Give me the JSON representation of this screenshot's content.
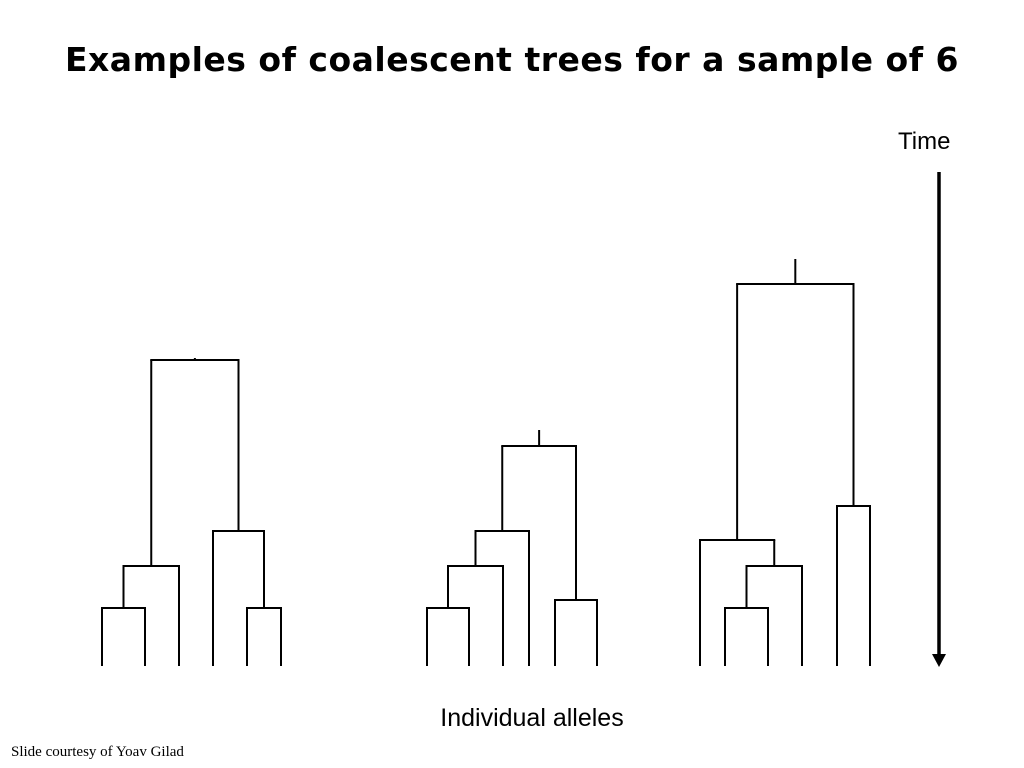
{
  "title": "Examples of coalescent trees for a sample of 6",
  "time_axis_label": "Time",
  "x_axis_label": "Individual alleles",
  "credit": "Slide courtesy of Yoav Gilad",
  "trees": [
    {
      "name": "tree-1",
      "root_time": 308,
      "nodes": [
        {
          "children": [
            1,
            2
          ],
          "time": 58
        },
        {
          "children": [
            "n0",
            3
          ],
          "time": 100
        },
        {
          "children": [
            5,
            6
          ],
          "time": 58
        },
        {
          "children": [
            4,
            "n2"
          ],
          "time": 135
        },
        {
          "children": [
            "n1",
            "n3"
          ],
          "time": 306
        }
      ]
    },
    {
      "name": "tree-2",
      "root_time": 236,
      "nodes": [
        {
          "children": [
            1,
            2
          ],
          "time": 58
        },
        {
          "children": [
            "n0",
            3
          ],
          "time": 100
        },
        {
          "children": [
            "n1",
            4
          ],
          "time": 135
        },
        {
          "children": [
            5,
            6
          ],
          "time": 66
        },
        {
          "children": [
            "n2",
            "n3"
          ],
          "time": 220
        }
      ]
    },
    {
      "name": "tree-3",
      "root_time": 407,
      "nodes": [
        {
          "children": [
            2,
            3
          ],
          "time": 58
        },
        {
          "children": [
            "n0",
            4
          ],
          "time": 100
        },
        {
          "children": [
            1,
            "n1"
          ],
          "time": 126
        },
        {
          "children": [
            5,
            6
          ],
          "time": 160
        },
        {
          "children": [
            "n2",
            "n3"
          ],
          "time": 382
        }
      ]
    }
  ]
}
